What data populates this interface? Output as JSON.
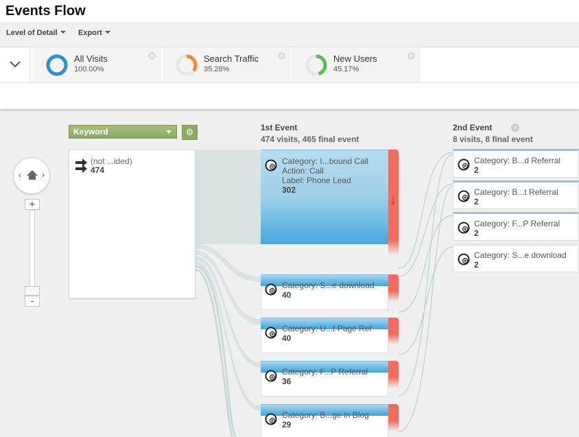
{
  "page": {
    "title": "Events Flow"
  },
  "toolbar": {
    "level_of_detail": "Level of Detail",
    "export": "Export"
  },
  "segments": [
    {
      "name": "All Visits",
      "pct": "100.00%",
      "color": "#2f8fd0",
      "fraction": 1.0
    },
    {
      "name": "Search Traffic",
      "pct": "35.28%",
      "color": "#ef8c33",
      "fraction": 0.3528
    },
    {
      "name": "New Users",
      "pct": "45.17%",
      "color": "#5cbf4a",
      "fraction": 0.4517
    }
  ],
  "dimension": {
    "selected": "Keyword"
  },
  "start_node": {
    "label": "(not ...ided)",
    "count": "474"
  },
  "columns": [
    {
      "title": "1st Event",
      "summary": "474 visits, 465 final event",
      "nodes": [
        {
          "category": "Category: I...bound Call",
          "action": "Action: Call",
          "label": "Label: Phone Lead",
          "count": "302"
        },
        {
          "category": "Category: S...e download",
          "count": "40"
        },
        {
          "category": "Category: U...t Page Ref",
          "count": "40"
        },
        {
          "category": "Category: F...P Referral",
          "count": "36"
        },
        {
          "category": "Category: B...ge in Blog",
          "count": "29"
        }
      ]
    },
    {
      "title": "2nd Event",
      "summary": "8 visits, 8 final event",
      "nodes": [
        {
          "category": "Category: B...d Referral",
          "count": "2"
        },
        {
          "category": "Category: B...t Referral",
          "count": "2"
        },
        {
          "category": "Category: F...P Referral",
          "count": "2"
        },
        {
          "category": "Category: S...e download",
          "count": "2"
        }
      ]
    }
  ],
  "colors": {
    "node_blue": "#4aa9dc",
    "drop_off": "#ef6c5f",
    "flow": "#d5e0e0",
    "dimension_green": "#8eab64"
  },
  "icons": {
    "collapse": "chevron-down-icon",
    "home": "home-icon",
    "settings": "gear-icon",
    "node": "plus-circle-icon",
    "close": "close-icon"
  }
}
